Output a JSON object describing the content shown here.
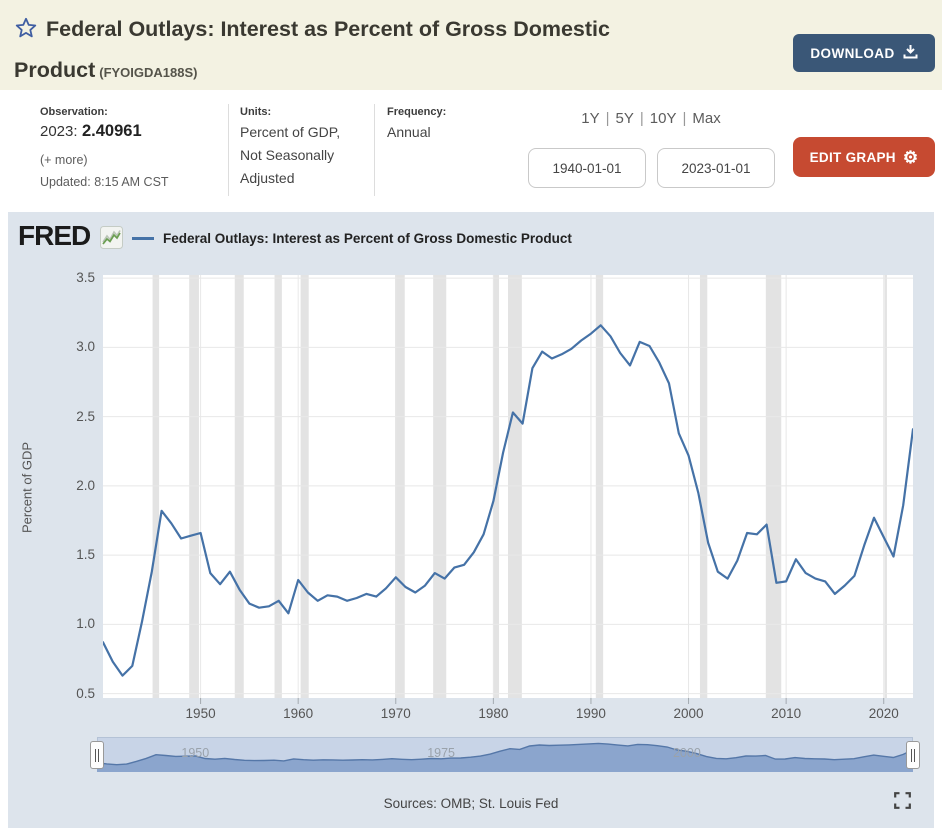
{
  "header": {
    "title": "Federal Outlays: Interest as Percent of Gross Domestic Product",
    "series_id": "(FYOIGDA188S)",
    "download_label": "DOWNLOAD"
  },
  "info": {
    "observation": {
      "label": "Observation:",
      "period": "2023:",
      "value": "2.40961",
      "more": "(+ more)",
      "updated": "Updated: 8:15 AM CST"
    },
    "units": {
      "label": "Units:",
      "value": "Percent of GDP,\nNot Seasonally\nAdjusted"
    },
    "frequency": {
      "label": "Frequency:",
      "value": "Annual"
    },
    "ranges": [
      "1Y",
      "5Y",
      "10Y",
      "Max"
    ],
    "range_separator": "|",
    "date_start": "1940-01-01",
    "date_end": "2023-01-01",
    "edit_label": "EDIT GRAPH"
  },
  "graph": {
    "logo": "FRED",
    "legend": "Federal Outlays: Interest as Percent of Gross Domestic Product",
    "sources": "Sources: OMB; St. Louis Fed"
  },
  "chart_data": {
    "type": "line",
    "title": "Federal Outlays: Interest as Percent of Gross Domestic Product",
    "xlabel": "",
    "ylabel": "Percent of GDP",
    "x": [
      1940,
      1941,
      1942,
      1943,
      1944,
      1945,
      1946,
      1947,
      1948,
      1949,
      1950,
      1951,
      1952,
      1953,
      1954,
      1955,
      1956,
      1957,
      1958,
      1959,
      1960,
      1961,
      1962,
      1963,
      1964,
      1965,
      1966,
      1967,
      1968,
      1969,
      1970,
      1971,
      1972,
      1973,
      1974,
      1975,
      1976,
      1977,
      1978,
      1979,
      1980,
      1981,
      1982,
      1983,
      1984,
      1985,
      1986,
      1987,
      1988,
      1989,
      1990,
      1991,
      1992,
      1993,
      1994,
      1995,
      1996,
      1997,
      1998,
      1999,
      2000,
      2001,
      2002,
      2003,
      2004,
      2005,
      2006,
      2007,
      2008,
      2009,
      2010,
      2011,
      2012,
      2013,
      2014,
      2015,
      2016,
      2017,
      2018,
      2019,
      2020,
      2021,
      2022,
      2023
    ],
    "values": [
      0.87,
      0.73,
      0.63,
      0.7,
      1.02,
      1.38,
      1.82,
      1.73,
      1.62,
      1.64,
      1.66,
      1.37,
      1.29,
      1.38,
      1.25,
      1.15,
      1.12,
      1.13,
      1.17,
      1.08,
      1.32,
      1.23,
      1.17,
      1.21,
      1.2,
      1.17,
      1.19,
      1.22,
      1.2,
      1.26,
      1.34,
      1.27,
      1.23,
      1.28,
      1.37,
      1.33,
      1.41,
      1.43,
      1.52,
      1.65,
      1.89,
      2.24,
      2.53,
      2.45,
      2.85,
      2.97,
      2.92,
      2.95,
      2.99,
      3.05,
      3.1,
      3.16,
      3.08,
      2.96,
      2.87,
      3.04,
      3.01,
      2.89,
      2.74,
      2.38,
      2.22,
      1.95,
      1.59,
      1.38,
      1.33,
      1.46,
      1.66,
      1.65,
      1.72,
      1.3,
      1.31,
      1.47,
      1.37,
      1.33,
      1.31,
      1.22,
      1.28,
      1.35,
      1.57,
      1.77,
      1.63,
      1.49,
      1.86,
      2.40961
    ],
    "xlim": [
      1940,
      2023
    ],
    "ylim": [
      0.468,
      3.523
    ],
    "yticks": [
      0.5,
      1.0,
      1.5,
      2.0,
      2.5,
      3.0,
      3.5
    ],
    "xticks": [
      1950,
      1960,
      1970,
      1980,
      1990,
      2000,
      2010,
      2020
    ],
    "grid": true,
    "legend_position": "top-left",
    "line_color": "#4572a7",
    "grid_color": "#e8e8e8",
    "recession_color": "#e3e3e3",
    "recessions": [
      [
        1945.08,
        1945.75
      ],
      [
        1948.83,
        1949.83
      ],
      [
        1953.5,
        1954.42
      ],
      [
        1957.58,
        1958.33
      ],
      [
        1960.25,
        1961.08
      ],
      [
        1969.92,
        1970.92
      ],
      [
        1973.83,
        1975.17
      ],
      [
        1980.0,
        1980.58
      ],
      [
        1981.5,
        1982.92
      ],
      [
        1990.5,
        1991.25
      ],
      [
        2001.17,
        2001.92
      ],
      [
        2007.92,
        2009.5
      ],
      [
        2020.08,
        2020.33
      ]
    ],
    "slider_labels": [
      1950,
      1975,
      2000
    ],
    "slider_fill": "#8ba5cd",
    "slider_line": "#5577a8",
    "slider_track": "#c8d4e7"
  }
}
